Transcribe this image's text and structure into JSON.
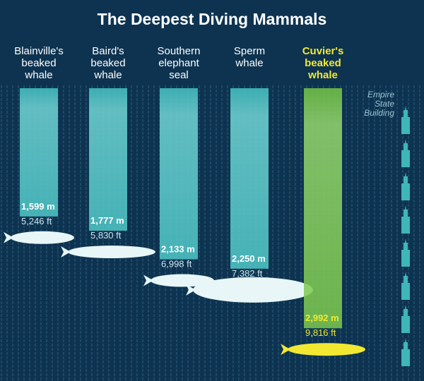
{
  "chart_data": {
    "type": "bar",
    "title": "The Deepest Diving Mammals",
    "categories": [
      "Blainville's\nbeaked\nwhale",
      "Baird's\nbeaked\nwhale",
      "Southern\nelephant\nseal",
      "Sperm\nwhale",
      "Cuvier's\nbeaked\nwhale"
    ],
    "values": [
      1599,
      1777,
      2133,
      2250,
      2992
    ],
    "value_labels": [
      "1,599 m",
      "1,777 m",
      "2,133 m",
      "2,250 m",
      "2,992 m"
    ],
    "feet_labels": [
      "5,246 ft",
      "5,830 ft",
      "6,998 ft",
      "7,382 ft",
      "9,816 ft"
    ],
    "colors": [
      "#3cc0bf",
      "#3cc0bf",
      "#3cc0bf",
      "#3cc0bf",
      "#6cc23a"
    ],
    "label_colors": [
      "#ffffff",
      "#ffffff",
      "#ffffff",
      "#ffffff",
      "#f2e832"
    ],
    "annotation": "Empire\nState\nBuilding"
  }
}
